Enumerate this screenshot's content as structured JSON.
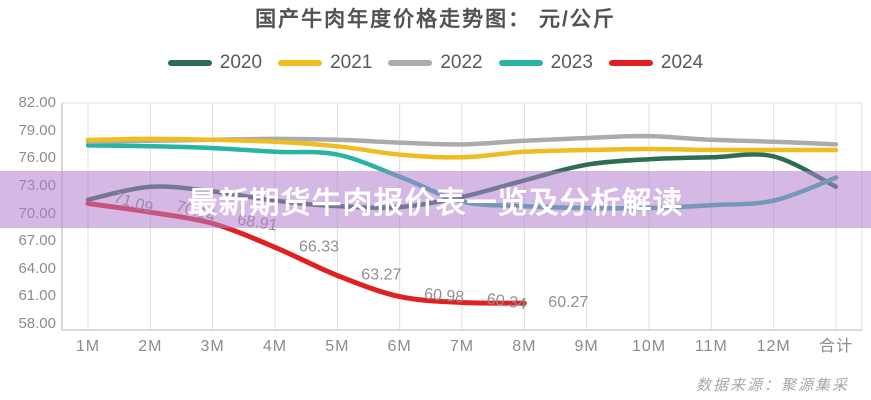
{
  "header": {
    "title": "国产牛肉年度价格走势图： 元/公斤"
  },
  "legend": {
    "items": [
      {
        "label": "2020",
        "color": "#2c6e52"
      },
      {
        "label": "2021",
        "color": "#edbd22"
      },
      {
        "label": "2022",
        "color": "#ababab"
      },
      {
        "label": "2023",
        "color": "#29b4a2"
      },
      {
        "label": "2024",
        "color": "#e02121"
      }
    ]
  },
  "overlay": {
    "banner_text": "最新期货牛肉报价表一览及分析解读",
    "band_rgba": "rgba(178,128,206,0.55)"
  },
  "footer": {
    "source_text": "数据来源：聚源集采"
  },
  "chart_data": {
    "type": "line",
    "title": "国产牛肉年度价格走势图： 元/公斤",
    "unit": "元/公斤",
    "legend_position": "top",
    "grid": "vertical",
    "ylim": [
      58,
      82
    ],
    "y_ticks": [
      "82.00",
      "79.00",
      "76.00",
      "73.00",
      "70.00",
      "67.00",
      "64.00",
      "61.00",
      "58.00"
    ],
    "categories": [
      "1M",
      "2M",
      "3M",
      "4M",
      "5M",
      "6M",
      "7M",
      "8M",
      "9M",
      "10M",
      "11M",
      "12M",
      "合计"
    ],
    "series": [
      {
        "name": "2020",
        "color": "#2c6e52",
        "values": [
          71.5,
          72.9,
          72.4,
          71.4,
          70.8,
          70.7,
          71.8,
          73.6,
          75.3,
          75.9,
          76.1,
          76.2,
          72.9
        ]
      },
      {
        "name": "2021",
        "color": "#edbd22",
        "values": [
          78.0,
          78.1,
          78.0,
          77.8,
          77.3,
          76.4,
          76.1,
          76.7,
          76.9,
          77.0,
          76.9,
          76.9,
          76.9
        ]
      },
      {
        "name": "2022",
        "color": "#ababab",
        "values": [
          77.8,
          77.9,
          78.0,
          78.1,
          78.0,
          77.7,
          77.5,
          77.9,
          78.2,
          78.4,
          78.0,
          77.8,
          77.5
        ]
      },
      {
        "name": "2023",
        "color": "#29b4a2",
        "values": [
          77.4,
          77.3,
          77.1,
          76.7,
          76.4,
          74.0,
          71.3,
          70.8,
          70.6,
          70.6,
          70.9,
          71.4,
          73.9
        ]
      },
      {
        "name": "2024",
        "color": "#e02121",
        "values": [
          71.09,
          70.14,
          68.91,
          66.33,
          63.27,
          60.98,
          60.34,
          60.27
        ]
      }
    ],
    "data_labels": {
      "series": "2024",
      "values": [
        "71.09",
        "70.14",
        "68.91",
        "66.33",
        "63.27",
        "60.98",
        "60.34",
        "60.27"
      ]
    }
  }
}
